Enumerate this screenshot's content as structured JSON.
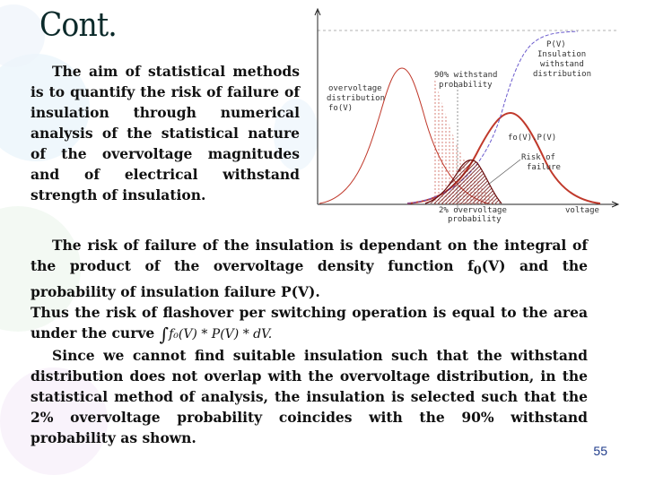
{
  "slide": {
    "title": "Cont.",
    "intro_paragraph": "The aim of statistical methods is to quantify the risk of failure of insulation through numerical analysis of the statistical nature of the overvoltage magnitudes and of electrical withstand strength of insulation.",
    "body": {
      "line1_pre": "The risk of failure of the insulation is dependant on the integral of the product of the overvoltage density function f",
      "line1_sub": "0",
      "line1_post": "(V) and the probability of insulation failure P(V).",
      "line2": "Thus the risk of flashover per switching operation is equal to the area under the curve",
      "equation": "f₀(V) * P(V) * dV.",
      "integral_symbol": "∫",
      "line3": "Since we cannot find suitable insulation such that the withstand distribution does not overlap with the overvoltage distribution, in the statistical method of analysis, the insulation is selected such that the 2% overvoltage probability coincides with the 90% withstand probability as shown."
    },
    "page_number": "55"
  },
  "figure": {
    "labels": {
      "pv": "P(V)",
      "insulation1": "Insulation",
      "insulation2": "withstand",
      "insulation3": "distribution",
      "withstand90_1": "90% withstand",
      "withstand90_2": "probability",
      "overvoltage1": "overvoltage",
      "overvoltage2": "distribution",
      "overvoltage3": "fo(V)",
      "product": "fo(V).P(V)",
      "risk1": "Risk of",
      "risk2": "failure",
      "two_percent1": "2% overvoltage",
      "two_percent2": "probability",
      "voltage": "voltage"
    },
    "colors": {
      "overvoltage_curve": "#c0392b",
      "withstand_curve": "#6a5acd",
      "product_curve": "#b22222",
      "axis": "#222222"
    }
  }
}
